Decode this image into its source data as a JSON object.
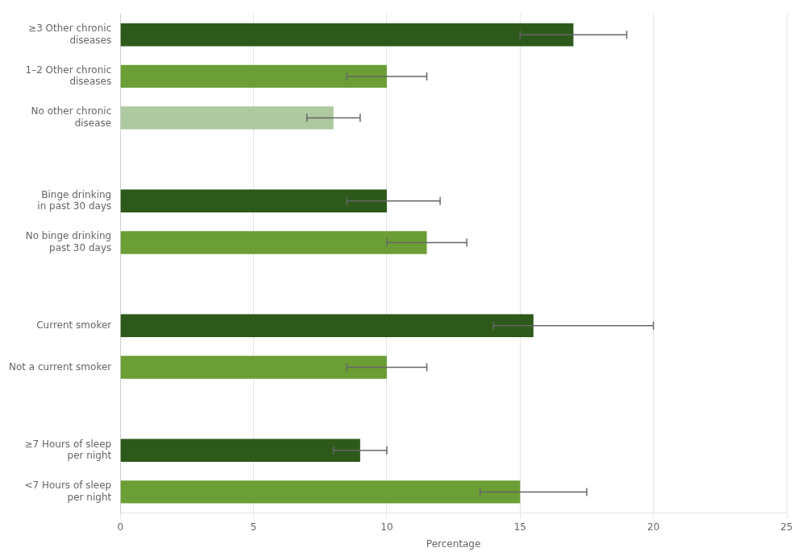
{
  "chart_data": {
    "type": "bar",
    "orientation": "horizontal",
    "categories": [
      "<7 Hours of sleep\nper night",
      "≥7 Hours of sleep\nper night",
      null,
      "Not a current smoker",
      "Current smoker",
      null,
      "No binge drinking\npast 30 days",
      "Binge drinking\nin past 30 days",
      null,
      "No other chronic\ndisease",
      "1–2 Other chronic\ndiseases",
      "≥3 Other chronic\ndiseases"
    ],
    "values": [
      15.0,
      9.0,
      null,
      10.0,
      15.5,
      null,
      11.5,
      10.0,
      null,
      8.0,
      10.0,
      17.0
    ],
    "ci_lower": [
      13.5,
      8.0,
      null,
      8.5,
      14.0,
      null,
      10.0,
      8.5,
      null,
      7.0,
      8.5,
      15.0
    ],
    "ci_upper": [
      17.5,
      10.0,
      null,
      11.5,
      20.0,
      null,
      13.0,
      12.0,
      null,
      9.0,
      11.5,
      19.0
    ],
    "colors": [
      "#6b9e35",
      "#2d5a1b",
      null,
      "#6b9e35",
      "#2d5a1b",
      null,
      "#6b9e35",
      "#2d5a1b",
      null,
      "#aec9a0",
      "#6b9e35",
      "#2d5a1b"
    ],
    "xlabel": "Percentage",
    "xlim": [
      0,
      25
    ],
    "xticks": [
      0,
      5,
      10,
      15,
      20,
      25
    ],
    "grid": true
  }
}
